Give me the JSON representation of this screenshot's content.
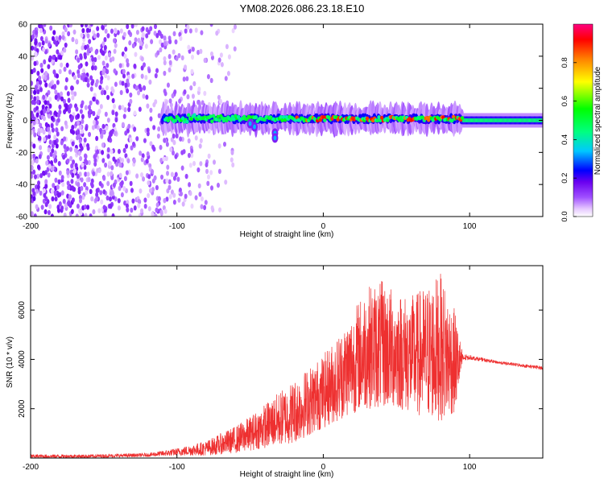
{
  "figure": {
    "title": "YM08.2026.086.23.18.E10"
  },
  "chart_data": [
    {
      "type": "heatmap",
      "title": "YM08.2026.086.23.18.E10",
      "xlabel": "Height of straight line (km)",
      "ylabel": "Frequency (Hz)",
      "xlim": [
        -200,
        150
      ],
      "ylim": [
        -60,
        60
      ],
      "xticks": [
        -200,
        -100,
        0,
        100
      ],
      "xtick_labels": [
        "-200",
        "-100",
        "0",
        "100"
      ],
      "yticks": [
        -60,
        -40,
        -20,
        0,
        20,
        40,
        60
      ],
      "ytick_labels": [
        "-60",
        "-40",
        "-20",
        "0",
        "20",
        "40",
        "60"
      ],
      "colorbar": {
        "label": "Normalized spectral amplitude",
        "range": [
          0,
          1
        ],
        "ticks": [
          0,
          0.2,
          0.4,
          0.6,
          0.8
        ],
        "tick_labels": [
          "0.0",
          "0.2",
          "0.4",
          "0.6",
          "0.8"
        ],
        "colors": [
          "#ffffff",
          "#e6c8ff",
          "#a050ff",
          "#6a00f0",
          "#0000ff",
          "#00c8ff",
          "#00ff80",
          "#00ff00",
          "#ffff00",
          "#ff8000",
          "#ff0000",
          "#ff0080"
        ]
      },
      "bands": [
        {
          "name": "noisy-scatter",
          "x": [
            -200,
            -70
          ],
          "y": [
            -60,
            60
          ],
          "amplitude": 0.12
        },
        {
          "name": "main-band",
          "x": [
            -110,
            95
          ],
          "y": [
            -3,
            5
          ],
          "amplitude": 0.6
        },
        {
          "name": "tail-band",
          "x": [
            95,
            150
          ],
          "y": [
            -3,
            3
          ],
          "amplitude": 0.4
        }
      ]
    },
    {
      "type": "line",
      "xlabel": "Height of straight line (km)",
      "ylabel": "SNR (10 * v/v)",
      "xlim": [
        -200,
        150
      ],
      "ylim": [
        0,
        7800
      ],
      "xticks": [
        -200,
        -100,
        0,
        100
      ],
      "xtick_labels": [
        "-200",
        "-100",
        "0",
        "100"
      ],
      "yticks": [
        2000,
        4000,
        6000
      ],
      "ytick_labels": [
        "2000",
        "4000",
        "6000"
      ],
      "color": "#ee3030",
      "series": [
        {
          "name": "SNR",
          "envelope": {
            "x": [
              -200,
              -160,
              -120,
              -100,
              -80,
              -70,
              -60,
              -50,
              -40,
              -30,
              -20,
              -10,
              0,
              10,
              20,
              30,
              40,
              50,
              60,
              70,
              80,
              90,
              95,
              100,
              120,
              150
            ],
            "low": [
              0,
              0,
              50,
              100,
              100,
              150,
              200,
              300,
              400,
              500,
              600,
              900,
              1200,
              1500,
              1800,
              2000,
              2000,
              2000,
              1800,
              1600,
              1500,
              1800,
              3700,
              3900,
              3750,
              3500
            ],
            "high": [
              150,
              150,
              200,
              400,
              700,
              1000,
              1300,
              1700,
              2200,
              2700,
              3200,
              3700,
              4200,
              5000,
              6000,
              7000,
              7200,
              6800,
              6600,
              7000,
              7500,
              6000,
              4300,
              4200,
              3950,
              3750
            ]
          }
        }
      ]
    }
  ]
}
